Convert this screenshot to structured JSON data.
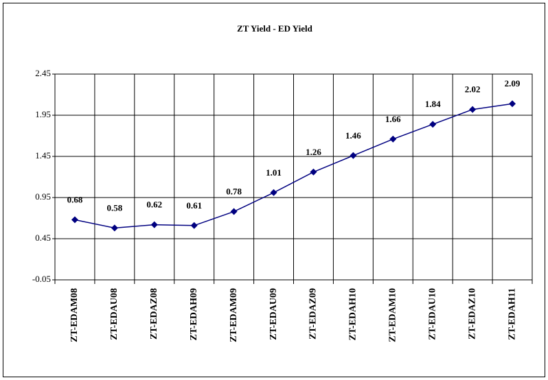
{
  "chart_data": {
    "type": "line",
    "title": "ZT Yield - ED Yield",
    "categories": [
      "ZT-EDAM08",
      "ZT-EDAU08",
      "ZT-EDAZ08",
      "ZT-EDAH09",
      "ZT-EDAM09",
      "ZT-EDAU09",
      "ZT-EDAZ09",
      "ZT-EDAH10",
      "ZT-EDAM10",
      "ZT-EDAU10",
      "ZT-EDAZ10",
      "ZT-EDAH11"
    ],
    "series": [
      {
        "name": "ZT Yield - ED Yield",
        "color": "#000080",
        "values": [
          0.68,
          0.58,
          0.62,
          0.61,
          0.78,
          1.01,
          1.26,
          1.46,
          1.66,
          1.84,
          2.02,
          2.09
        ]
      }
    ],
    "ylim": [
      -0.05,
      2.45
    ],
    "yticks": [
      -0.05,
      0.45,
      0.95,
      1.45,
      1.95,
      2.45
    ],
    "grid": true
  }
}
